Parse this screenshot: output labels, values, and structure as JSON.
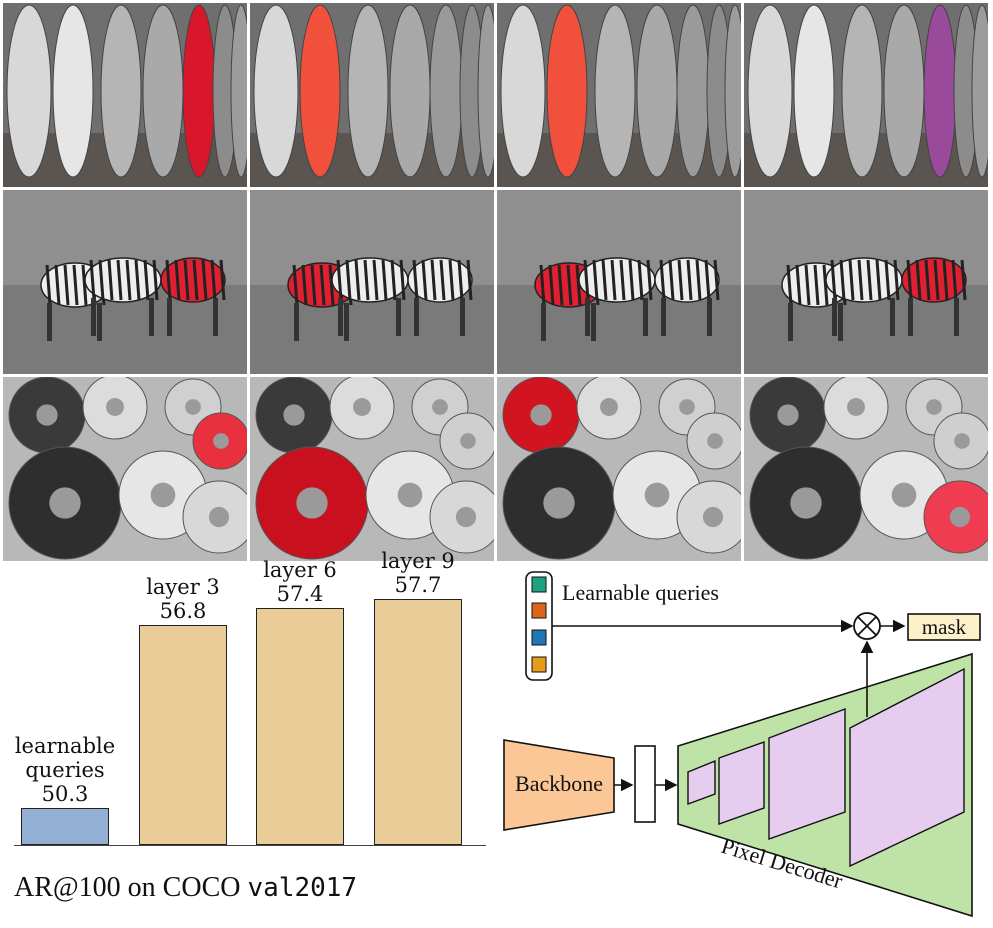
{
  "figure": {
    "rows": [
      {
        "name": "surfboards",
        "tiles": [
          {
            "highlight": "#d8182a"
          },
          {
            "highlight": "#f0503c"
          },
          {
            "highlight": "#f0503c"
          },
          {
            "highlight": "#9a4a9a"
          }
        ]
      },
      {
        "name": "zebras",
        "tiles": [
          {
            "highlight": "#e02030"
          },
          {
            "highlight": "#e02030"
          },
          {
            "highlight": "#e02030"
          },
          {
            "highlight": "#e02030"
          }
        ]
      },
      {
        "name": "donuts",
        "tiles": [
          {
            "highlight": "#e8303e"
          },
          {
            "highlight": "#c8101e"
          },
          {
            "highlight": "#d01420"
          },
          {
            "highlight": "#f03c50"
          }
        ]
      }
    ]
  },
  "chart_data": {
    "type": "bar",
    "categories": [
      "learnable queries",
      "layer 3",
      "layer 6",
      "layer 9"
    ],
    "label_lines": [
      [
        "learnable",
        "queries"
      ],
      [
        "layer 3"
      ],
      [
        "layer 6"
      ],
      [
        "layer 9"
      ]
    ],
    "values": [
      50.3,
      56.8,
      57.4,
      57.7
    ],
    "value_labels": [
      "50.3",
      "56.8",
      "57.4",
      "57.7"
    ],
    "colors": [
      "#93afd3",
      "#e9cc97",
      "#e9cc97",
      "#e9cc97"
    ],
    "ylim": [
      49,
      58.2
    ],
    "caption_main": "AR@100 on COCO ",
    "caption_mono": "val2017"
  },
  "diagram": {
    "queries_label": "Learnable queries",
    "query_colors": [
      "#1fa183",
      "#d9661c",
      "#1f77b4",
      "#e89a1a"
    ],
    "backbone_label": "Backbone",
    "mask_label": "mask",
    "decoder_label": "Pixel Decoder",
    "backbone_color": "#fbc796",
    "decoder_color": "#bfe3a6",
    "feature_color": "#e6cdf0",
    "mask_color": "#fdf1c9"
  }
}
